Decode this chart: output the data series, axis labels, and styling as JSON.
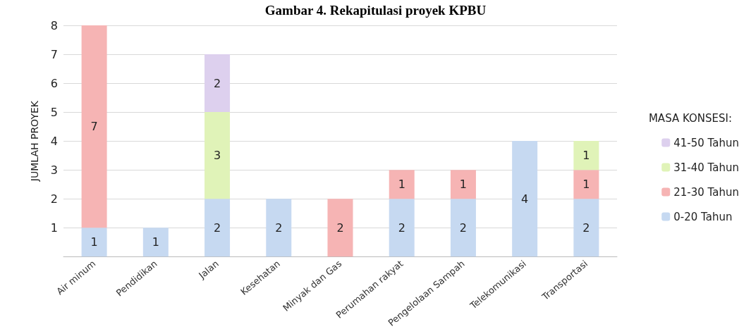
{
  "chart_data": {
    "type": "bar",
    "title": "Gambar 4. Rekapitulasi proyek KPBU",
    "ylabel": "JUMLAH PROYEK",
    "legend_title": "MASA KONSESI:",
    "categories": [
      "Air minum",
      "Pendidikan",
      "Jalan",
      "Kesehatan",
      "Minyak dan Gas",
      "Perumahan rakyat",
      "Pengelolaan Sampah",
      "Telekomunikasi",
      "Transportasi"
    ],
    "series": [
      {
        "name": "0-20 Tahun",
        "color": "#c6d9f1",
        "values": [
          1,
          1,
          2,
          2,
          null,
          2,
          2,
          4,
          2
        ]
      },
      {
        "name": "21-30 Tahun",
        "color": "#f6b4b4",
        "values": [
          7,
          null,
          null,
          null,
          2,
          1,
          1,
          null,
          1
        ]
      },
      {
        "name": "31-40 Tahun",
        "color": "#e0f3b8",
        "values": [
          null,
          null,
          3,
          null,
          null,
          null,
          null,
          null,
          1
        ]
      },
      {
        "name": "41-50 Tahun",
        "color": "#ddd0ee",
        "values": [
          null,
          null,
          2,
          null,
          null,
          null,
          null,
          null,
          null
        ]
      }
    ],
    "stacked": true,
    "data_labels": true,
    "ylim": [
      0,
      8
    ],
    "yticks": [
      1,
      2,
      3,
      4,
      5,
      6,
      7,
      8
    ],
    "grid": "y",
    "legend": "right"
  }
}
